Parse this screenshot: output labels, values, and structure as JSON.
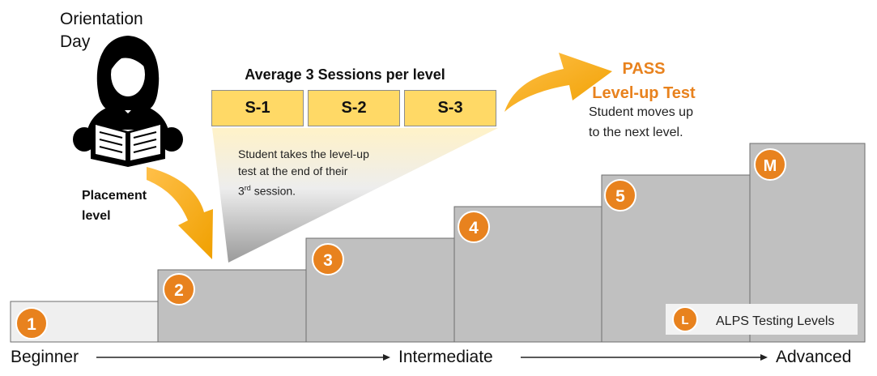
{
  "orientation": {
    "line1": "Orientation",
    "line2": "Day"
  },
  "placement": {
    "line1": "Placement",
    "line2": "level"
  },
  "sessions": {
    "title": "Average 3 Sessions per level",
    "items": [
      "S-1",
      "S-2",
      "S-3"
    ],
    "note_line1": "Student takes the level-up",
    "note_line2": "test at the end of their",
    "note_line3_num": "3",
    "note_line3_sup": "rd",
    "note_line3_rest": " session."
  },
  "pass": {
    "line1": "PASS",
    "line2": "Level-up Test",
    "desc_line1": "Student moves up",
    "desc_line2": "to the next level."
  },
  "levels": [
    "1",
    "2",
    "3",
    "4",
    "5",
    "M"
  ],
  "legend": {
    "badge": "L",
    "label": "ALPS Testing Levels"
  },
  "axis": {
    "start": "Beginner",
    "middle": "Intermediate",
    "end": "Advanced"
  },
  "colors": {
    "accent": "#E8821E",
    "arrow": "#F5A31A",
    "step": "#C0C0C0",
    "step_first": "#EFEFEF",
    "session_box": "#FFD966",
    "pass_text": "#E8821E"
  },
  "icons": {
    "person": "person-reading-icon"
  }
}
